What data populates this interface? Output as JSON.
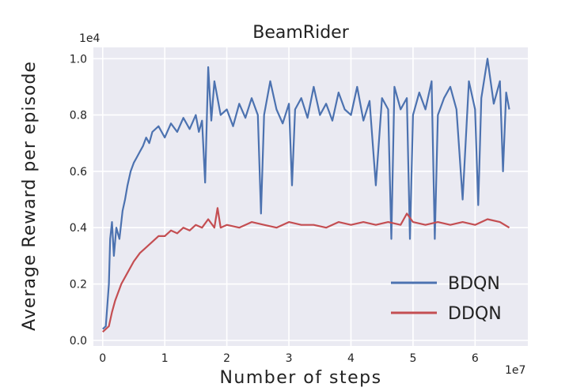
{
  "chart_data": {
    "type": "line",
    "title": "BeamRider",
    "xlabel": "Number of steps",
    "ylabel": "Average Reward per episode",
    "x_multiplier": "1e7",
    "y_multiplier": "1e4",
    "xlim": [
      -0.15,
      6.85
    ],
    "ylim": [
      -0.02,
      1.04
    ],
    "x_ticks": [
      0,
      1,
      2,
      3,
      4,
      5,
      6
    ],
    "x_tick_labels": [
      "0",
      "1",
      "2",
      "3",
      "4",
      "5",
      "6"
    ],
    "y_ticks": [
      0.0,
      0.2,
      0.4,
      0.6,
      0.8,
      1.0
    ],
    "y_tick_labels": [
      "0.0",
      "0.2",
      "0.4",
      "0.6",
      "0.8",
      "1.0"
    ],
    "grid": true,
    "legend_position": "bottom-right",
    "series": [
      {
        "name": "BDQN",
        "color": "#4c72b0",
        "points": [
          [
            0.0,
            0.04
          ],
          [
            0.05,
            0.05
          ],
          [
            0.1,
            0.2
          ],
          [
            0.12,
            0.36
          ],
          [
            0.15,
            0.42
          ],
          [
            0.18,
            0.3
          ],
          [
            0.22,
            0.4
          ],
          [
            0.27,
            0.36
          ],
          [
            0.32,
            0.46
          ],
          [
            0.36,
            0.5
          ],
          [
            0.4,
            0.55
          ],
          [
            0.45,
            0.6
          ],
          [
            0.5,
            0.63
          ],
          [
            0.55,
            0.65
          ],
          [
            0.6,
            0.67
          ],
          [
            0.65,
            0.69
          ],
          [
            0.7,
            0.72
          ],
          [
            0.75,
            0.7
          ],
          [
            0.8,
            0.74
          ],
          [
            0.9,
            0.76
          ],
          [
            1.0,
            0.72
          ],
          [
            1.1,
            0.77
          ],
          [
            1.2,
            0.74
          ],
          [
            1.3,
            0.79
          ],
          [
            1.4,
            0.75
          ],
          [
            1.5,
            0.8
          ],
          [
            1.55,
            0.74
          ],
          [
            1.6,
            0.78
          ],
          [
            1.65,
            0.56
          ],
          [
            1.7,
            0.97
          ],
          [
            1.75,
            0.78
          ],
          [
            1.8,
            0.92
          ],
          [
            1.9,
            0.8
          ],
          [
            2.0,
            0.82
          ],
          [
            2.1,
            0.76
          ],
          [
            2.2,
            0.84
          ],
          [
            2.3,
            0.79
          ],
          [
            2.4,
            0.86
          ],
          [
            2.5,
            0.8
          ],
          [
            2.55,
            0.45
          ],
          [
            2.6,
            0.8
          ],
          [
            2.7,
            0.92
          ],
          [
            2.8,
            0.82
          ],
          [
            2.9,
            0.77
          ],
          [
            3.0,
            0.84
          ],
          [
            3.05,
            0.55
          ],
          [
            3.1,
            0.82
          ],
          [
            3.2,
            0.86
          ],
          [
            3.3,
            0.79
          ],
          [
            3.4,
            0.9
          ],
          [
            3.5,
            0.8
          ],
          [
            3.6,
            0.84
          ],
          [
            3.7,
            0.78
          ],
          [
            3.8,
            0.88
          ],
          [
            3.9,
            0.82
          ],
          [
            4.0,
            0.8
          ],
          [
            4.1,
            0.9
          ],
          [
            4.2,
            0.78
          ],
          [
            4.3,
            0.85
          ],
          [
            4.4,
            0.55
          ],
          [
            4.5,
            0.86
          ],
          [
            4.6,
            0.82
          ],
          [
            4.65,
            0.36
          ],
          [
            4.7,
            0.9
          ],
          [
            4.8,
            0.82
          ],
          [
            4.9,
            0.86
          ],
          [
            4.95,
            0.36
          ],
          [
            5.0,
            0.8
          ],
          [
            5.1,
            0.88
          ],
          [
            5.2,
            0.82
          ],
          [
            5.3,
            0.92
          ],
          [
            5.35,
            0.36
          ],
          [
            5.4,
            0.8
          ],
          [
            5.5,
            0.86
          ],
          [
            5.6,
            0.9
          ],
          [
            5.7,
            0.82
          ],
          [
            5.8,
            0.5
          ],
          [
            5.9,
            0.92
          ],
          [
            6.0,
            0.82
          ],
          [
            6.05,
            0.48
          ],
          [
            6.1,
            0.86
          ],
          [
            6.2,
            1.0
          ],
          [
            6.3,
            0.84
          ],
          [
            6.4,
            0.92
          ],
          [
            6.45,
            0.6
          ],
          [
            6.5,
            0.88
          ],
          [
            6.55,
            0.82
          ]
        ]
      },
      {
        "name": "DDQN",
        "color": "#c44e52",
        "points": [
          [
            0.0,
            0.03
          ],
          [
            0.05,
            0.04
          ],
          [
            0.1,
            0.05
          ],
          [
            0.15,
            0.1
          ],
          [
            0.2,
            0.14
          ],
          [
            0.3,
            0.2
          ],
          [
            0.4,
            0.24
          ],
          [
            0.5,
            0.28
          ],
          [
            0.6,
            0.31
          ],
          [
            0.7,
            0.33
          ],
          [
            0.8,
            0.35
          ],
          [
            0.9,
            0.37
          ],
          [
            1.0,
            0.37
          ],
          [
            1.1,
            0.39
          ],
          [
            1.2,
            0.38
          ],
          [
            1.3,
            0.4
          ],
          [
            1.4,
            0.39
          ],
          [
            1.5,
            0.41
          ],
          [
            1.6,
            0.4
          ],
          [
            1.7,
            0.43
          ],
          [
            1.8,
            0.4
          ],
          [
            1.85,
            0.47
          ],
          [
            1.9,
            0.4
          ],
          [
            2.0,
            0.41
          ],
          [
            2.2,
            0.4
          ],
          [
            2.4,
            0.42
          ],
          [
            2.6,
            0.41
          ],
          [
            2.8,
            0.4
          ],
          [
            3.0,
            0.42
          ],
          [
            3.2,
            0.41
          ],
          [
            3.4,
            0.41
          ],
          [
            3.6,
            0.4
          ],
          [
            3.8,
            0.42
          ],
          [
            4.0,
            0.41
          ],
          [
            4.2,
            0.42
          ],
          [
            4.4,
            0.41
          ],
          [
            4.6,
            0.42
          ],
          [
            4.8,
            0.41
          ],
          [
            4.9,
            0.45
          ],
          [
            5.0,
            0.42
          ],
          [
            5.2,
            0.41
          ],
          [
            5.4,
            0.42
          ],
          [
            5.6,
            0.41
          ],
          [
            5.8,
            0.42
          ],
          [
            6.0,
            0.41
          ],
          [
            6.2,
            0.43
          ],
          [
            6.4,
            0.42
          ],
          [
            6.55,
            0.4
          ]
        ]
      }
    ]
  }
}
